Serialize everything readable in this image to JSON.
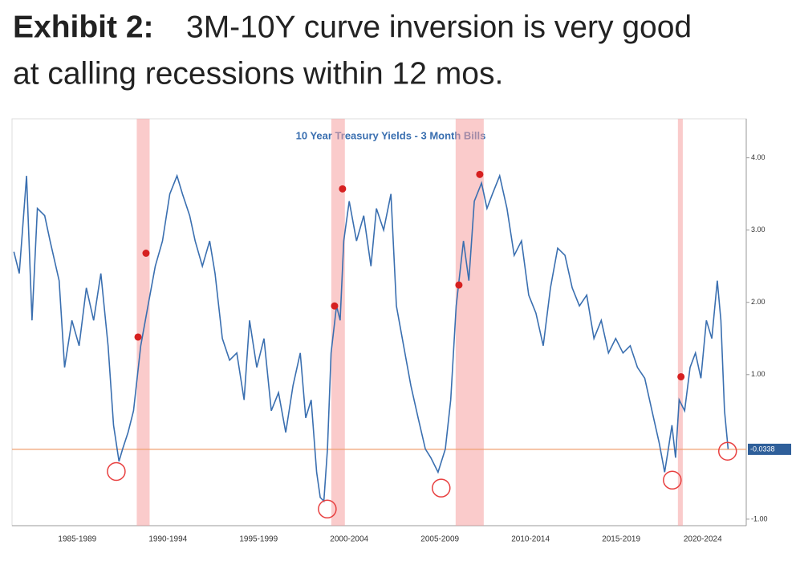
{
  "chart_data": {
    "type": "line",
    "title_prefix": "Exhibit 2:",
    "title": [
      "3M-10Y curve inversion is very good",
      "at calling recessions within 12 mos."
    ],
    "subtitle": "10 Year Treasury Yields - 3 Month Bills",
    "xlim": [
      1983.9,
      2024.4
    ],
    "ylim": [
      -1.09,
      4.54
    ],
    "yticks": [
      {
        "value": 4,
        "label": "4.00"
      },
      {
        "value": 3,
        "label": "3.00"
      },
      {
        "value": 2,
        "label": "2.00"
      },
      {
        "value": 1,
        "label": "1.00"
      },
      {
        "value": -1,
        "label": "-1.00"
      }
    ],
    "xticks": [
      {
        "value": 1987.5,
        "label": "1985-1989"
      },
      {
        "value": 1992.5,
        "label": "1990-1994"
      },
      {
        "value": 1997.5,
        "label": "1995-1999"
      },
      {
        "value": 2002.5,
        "label": "2000-2004"
      },
      {
        "value": 2007.5,
        "label": "2005-2009"
      },
      {
        "value": 2012.5,
        "label": "2010-2014"
      },
      {
        "value": 2017.5,
        "label": "2015-2019"
      },
      {
        "value": 2022,
        "label": "2020-2024"
      }
    ],
    "series": [
      {
        "color": "#3a6fb0",
        "x": [
          1984.0,
          1984.3,
          1984.7,
          1985.0,
          1985.3,
          1985.7,
          1986.0,
          1986.5,
          1986.8,
          1987.2,
          1987.6,
          1988.0,
          1988.4,
          1988.8,
          1989.2,
          1989.5,
          1989.8,
          1990.0,
          1990.3,
          1990.6,
          1991.0,
          1991.4,
          1991.8,
          1992.2,
          1992.6,
          1993.0,
          1993.3,
          1993.7,
          1994.0,
          1994.4,
          1994.8,
          1995.1,
          1995.5,
          1995.9,
          1996.3,
          1996.7,
          1997.0,
          1997.4,
          1997.8,
          1998.2,
          1998.6,
          1999.0,
          1999.4,
          1999.8,
          2000.1,
          2000.4,
          2000.7,
          2000.9,
          2001.1,
          2001.3,
          2001.5,
          2001.8,
          2002.0,
          2002.2,
          2002.5,
          2002.9,
          2003.3,
          2003.7,
          2004.0,
          2004.4,
          2004.8,
          2005.1,
          2005.5,
          2005.9,
          2006.3,
          2006.7,
          2007.0,
          2007.4,
          2007.8,
          2008.1,
          2008.4,
          2008.8,
          2009.1,
          2009.4,
          2009.8,
          2010.1,
          2010.4,
          2010.8,
          2011.2,
          2011.6,
          2012.0,
          2012.4,
          2012.8,
          2013.2,
          2013.6,
          2014.0,
          2014.4,
          2014.8,
          2015.2,
          2015.6,
          2016.0,
          2016.4,
          2016.8,
          2017.2,
          2017.6,
          2018.0,
          2018.4,
          2018.8,
          2019.2,
          2019.6,
          2019.9,
          2020.1,
          2020.3,
          2020.5,
          2020.7,
          2021.0,
          2021.3,
          2021.6,
          2021.9,
          2022.2,
          2022.5,
          2022.8,
          2023.0,
          2023.2,
          2023.4
        ],
        "values": [
          2.7,
          2.4,
          3.75,
          1.75,
          3.3,
          3.2,
          2.85,
          2.3,
          1.1,
          1.75,
          1.4,
          2.2,
          1.75,
          2.4,
          1.4,
          0.3,
          -0.2,
          -0.03,
          0.2,
          0.5,
          1.4,
          1.95,
          2.5,
          2.85,
          3.5,
          3.75,
          3.5,
          3.2,
          2.85,
          2.5,
          2.85,
          2.4,
          1.5,
          1.2,
          1.3,
          0.65,
          1.75,
          1.1,
          1.5,
          0.5,
          0.75,
          0.2,
          0.85,
          1.3,
          0.4,
          0.65,
          -0.35,
          -0.7,
          -0.75,
          -0.03,
          1.3,
          1.95,
          1.75,
          2.85,
          3.4,
          2.85,
          3.2,
          2.5,
          3.3,
          3.0,
          3.5,
          1.95,
          1.4,
          0.85,
          0.4,
          -0.03,
          -0.15,
          -0.35,
          -0.03,
          0.65,
          1.95,
          2.85,
          2.3,
          3.4,
          3.65,
          3.3,
          3.5,
          3.75,
          3.3,
          2.65,
          2.85,
          2.1,
          1.85,
          1.4,
          2.2,
          2.75,
          2.65,
          2.2,
          1.95,
          2.1,
          1.5,
          1.75,
          1.3,
          1.5,
          1.3,
          1.4,
          1.1,
          0.95,
          0.5,
          0.05,
          -0.35,
          -0.03,
          0.3,
          -0.15,
          0.65,
          0.5,
          1.1,
          1.3,
          0.95,
          1.75,
          1.5,
          2.3,
          1.75,
          0.5,
          -0.03
        ]
      }
    ],
    "recessions": [
      [
        1990.78,
        1991.49
      ],
      [
        2001.51,
        2002.26
      ],
      [
        2008.37,
        2009.92
      ],
      [
        2020.63,
        2020.9
      ]
    ],
    "markers": {
      "color": "#d62020",
      "x": [
        1990.85,
        1991.29,
        2001.69,
        2002.13,
        2008.55,
        2009.7,
        2020.8
      ],
      "values": [
        1.52,
        2.68,
        1.95,
        3.57,
        2.24,
        3.77,
        0.97
      ]
    },
    "circles": {
      "color": "#e84040",
      "x": [
        1989.65,
        2001.29,
        2007.57,
        2020.32,
        2023.37
      ],
      "values": [
        -0.34,
        -0.86,
        -0.57,
        -0.46,
        -0.06
      ]
    },
    "last_value": -0.0338
  }
}
